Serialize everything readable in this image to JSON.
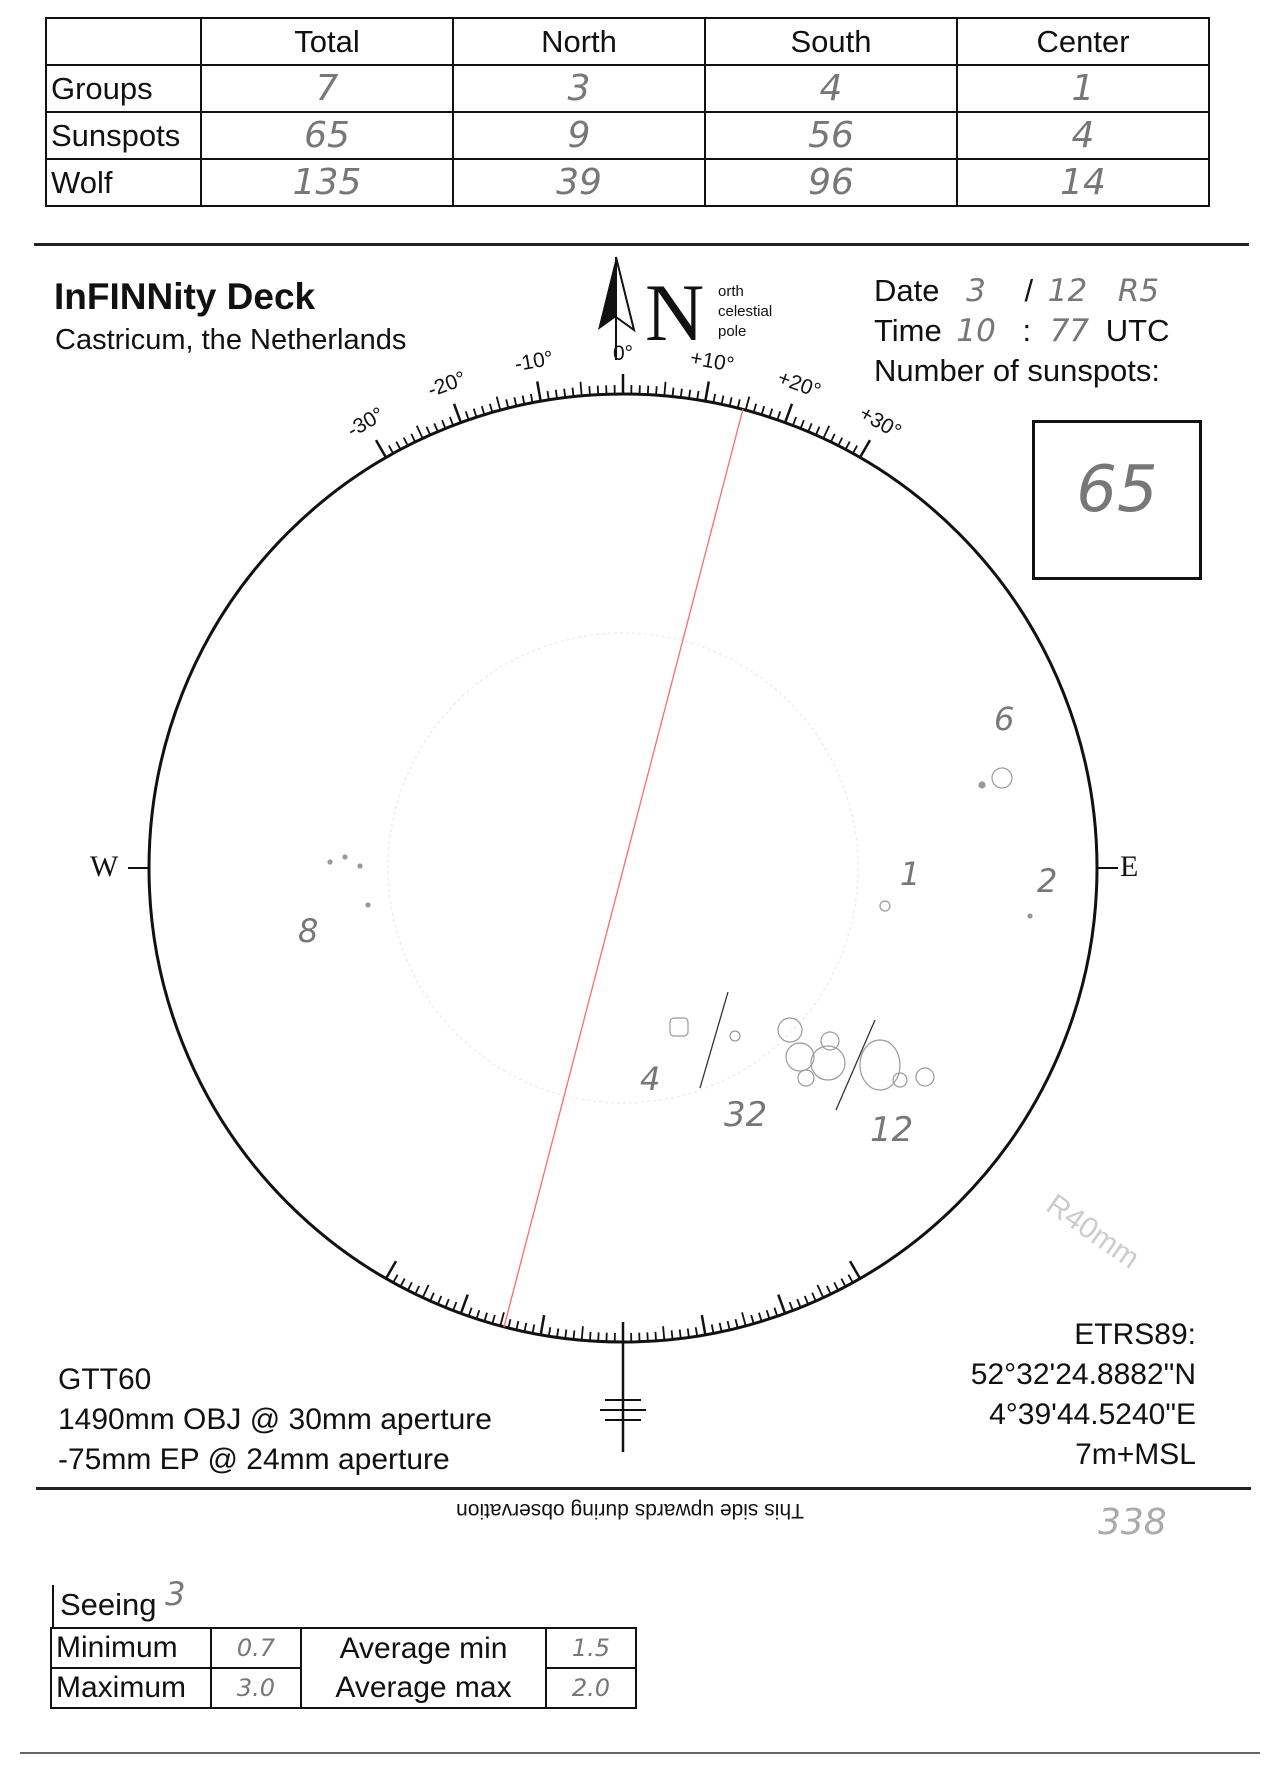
{
  "counts_table": {
    "columns": [
      "",
      "Total",
      "North",
      "South",
      "Center"
    ],
    "rows": [
      {
        "label": "Groups",
        "values": [
          "7",
          "3",
          "4",
          "1"
        ]
      },
      {
        "label": "Sunspots",
        "values": [
          "65",
          "9",
          "56",
          "4"
        ]
      },
      {
        "label": "Wolf",
        "values": [
          "135",
          "39",
          "96",
          "14"
        ]
      }
    ]
  },
  "header": {
    "title": "InFINNity Deck",
    "location": "Castricum, the Netherlands",
    "north_letter": "N",
    "north_note": [
      "orth",
      "celestial",
      "pole"
    ]
  },
  "observation": {
    "date_label": "Date",
    "date_day": "3",
    "date_sep": "/",
    "date_month": "12",
    "date_year": "R5",
    "time_label": "Time",
    "time_hour": "10",
    "time_sep": ":",
    "time_min": "77",
    "time_unit": "UTC",
    "sunspots_label": "Number of sunspots:",
    "sunspots_value": "65"
  },
  "disk": {
    "scale_labels": [
      "-30°",
      "-20°",
      "-10°",
      "0°",
      "+10°",
      "+20°",
      "+30°"
    ],
    "west": "W",
    "east": "E",
    "group_counts": [
      "6",
      "1",
      "2",
      "8",
      "4",
      "32",
      "12"
    ],
    "watermark": "R40mm",
    "axis_color": "#ff6b6b"
  },
  "instrument": {
    "name": "GTT60",
    "objective": "1490mm OBJ @ 30mm aperture",
    "eyepiece": "-75mm EP @ 24mm aperture"
  },
  "position": {
    "datum": "ETRS89:",
    "lat": "52°32'24.8882\"N",
    "lon": "4°39'44.5240\"E",
    "alt": "7m+MSL"
  },
  "orientation_note": "This side upwards during observation",
  "sheet_number": "338",
  "seeing": {
    "label": "Seeing",
    "value": "3",
    "minimum_label": "Minimum",
    "minimum": "0.7",
    "maximum_label": "Maximum",
    "maximum": "3.0",
    "avg_min_label": "Average min",
    "avg_min": "1.5",
    "avg_max_label": "Average max",
    "avg_max": "2.0"
  }
}
